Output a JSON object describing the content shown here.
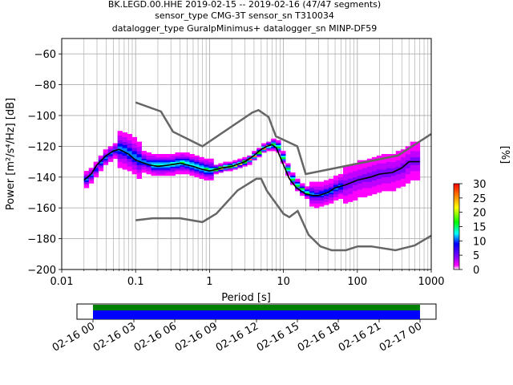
{
  "title_lines": [
    "BK.LEGD.00.HHE   2019-02-15 -- 2019-02-16  (47/47 segments)",
    "sensor_type CMG-3T sensor_sn T310034",
    "datalogger_type GuralpMinimus+ datalogger_sn MINP-DF59"
  ],
  "chart_data": {
    "type": "heatmap",
    "xlabel": "Period [s]",
    "ylabel": "Power [m²/s⁴/Hz] [dB]",
    "xscale": "log",
    "xlim": [
      0.01,
      1000
    ],
    "ylim": [
      -200,
      -50
    ],
    "x_ticks": [
      0.01,
      0.1,
      1,
      10,
      100,
      1000
    ],
    "x_tick_labels": [
      "0.01",
      "0.1",
      "1",
      "10",
      "100",
      "1000"
    ],
    "y_ticks": [
      -200,
      -180,
      -160,
      -140,
      -120,
      -100,
      -80,
      -60
    ],
    "y_tick_labels": [
      "−200",
      "−180",
      "−160",
      "−140",
      "−120",
      "−100",
      "−80",
      "−60"
    ],
    "grid": true,
    "mean_psd": {
      "period": [
        0.02,
        0.025,
        0.03,
        0.04,
        0.05,
        0.06,
        0.08,
        0.1,
        0.15,
        0.2,
        0.3,
        0.4,
        0.6,
        0.8,
        1.0,
        1.5,
        2,
        3,
        4,
        5,
        6,
        7,
        8,
        10,
        12,
        15,
        20,
        25,
        30,
        40,
        50,
        70,
        100,
        150,
        200,
        300,
        400,
        500,
        700
      ],
      "power": [
        -142,
        -138,
        -132,
        -126,
        -123,
        -122,
        -125,
        -129,
        -132,
        -133,
        -132,
        -131,
        -133,
        -135,
        -136,
        -134,
        -133,
        -130,
        -126,
        -122,
        -120,
        -119,
        -121,
        -132,
        -141,
        -147,
        -151,
        -152,
        -152,
        -150,
        -147,
        -145,
        -142,
        -140,
        -138,
        -137,
        -134,
        -130,
        -130
      ]
    },
    "nhnm": {
      "period": [
        0.1,
        0.22,
        0.32,
        0.8,
        3.8,
        4.6,
        6.3,
        7.9,
        15.4,
        20,
        354.8,
        1000
      ],
      "power": [
        -91.5,
        -97.4,
        -110.5,
        -120,
        -98,
        -96.5,
        -101,
        -113.5,
        -120,
        -138,
        -126,
        -112
      ]
    },
    "nlnm": {
      "period": [
        0.1,
        0.17,
        0.4,
        0.8,
        1.24,
        2.4,
        4.3,
        5,
        6,
        10,
        12,
        15.6,
        21.9,
        31.6,
        45,
        70,
        101,
        154,
        328,
        600,
        1000
      ],
      "power": [
        -168,
        -166.7,
        -166.7,
        -169.2,
        -163.7,
        -148.6,
        -141.1,
        -141.1,
        -149,
        -163.8,
        -166,
        -162,
        -177.5,
        -185,
        -187.5,
        -187.5,
        -185,
        -185,
        -187.5,
        -184.4,
        -178
      ]
    },
    "colorbar": {
      "label": "[%]",
      "range": [
        0,
        30
      ],
      "ticks": [
        0,
        5,
        10,
        15,
        20,
        25,
        30
      ]
    },
    "coverage": {
      "x_tick_labels": [
        "02-16 00",
        "02-16 03",
        "02-16 06",
        "02-16 09",
        "02-16 12",
        "02-16 15",
        "02-16 18",
        "02-16 21",
        "02-17 00"
      ],
      "top_color": "#008000",
      "bottom_color": "#0000ff"
    }
  },
  "colors": {
    "mean": "#000000",
    "model": "#666666",
    "grid": "#b0b0b0"
  }
}
